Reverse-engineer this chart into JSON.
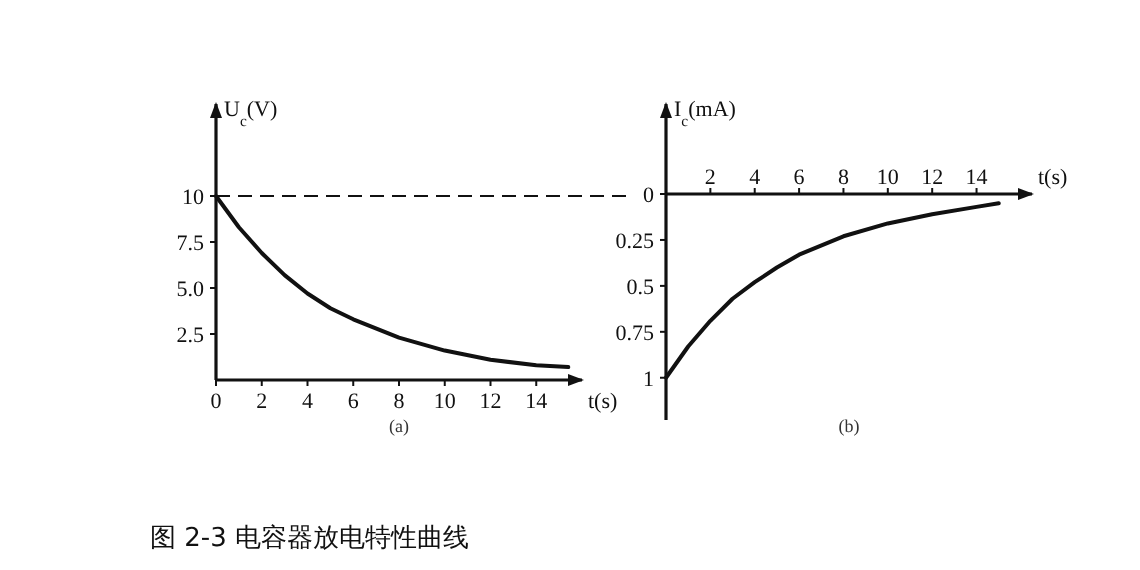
{
  "chart_data": [
    {
      "type": "line",
      "xlabel": "t(s)",
      "ylabel": "U$_{c}$(V)",
      "color": "#111111",
      "x": [
        0,
        1,
        2,
        3,
        4,
        5,
        6,
        8,
        10,
        12,
        14,
        15.4
      ],
      "values": [
        10,
        8.3,
        6.9,
        5.7,
        4.7,
        3.9,
        3.3,
        2.3,
        1.6,
        1.1,
        0.8,
        0.7
      ],
      "xlim": [
        0,
        16
      ],
      "ylim": [
        0,
        15
      ],
      "xticks": [
        0,
        2,
        4,
        6,
        8,
        10,
        12,
        14
      ],
      "yticks": [
        {
          "value": 2.5,
          "label": "2.5"
        },
        {
          "value": 5,
          "label": "5.0"
        },
        7.5,
        10
      ],
      "ref_lines": [
        {
          "axis": "y",
          "value": 10,
          "line_style": "dashed"
        }
      ],
      "annotations": [
        "(a)",
        "图 2-3 电容器放电特性曲线"
      ]
    },
    {
      "type": "line",
      "xlabel": "t(s)",
      "ylabel": "I$_{c}$(mA)",
      "color": "#111111",
      "x": [
        0,
        1,
        2,
        3,
        4,
        5,
        6,
        8,
        10,
        12,
        14,
        15
      ],
      "values": [
        1,
        0.83,
        0.69,
        0.57,
        0.48,
        0.4,
        0.33,
        0.23,
        0.16,
        0.11,
        0.07,
        0.05
      ],
      "xlim": [
        0,
        16.5
      ],
      "ylim": [
        1.23,
        -0.49
      ],
      "xticks": [
        2,
        4,
        6,
        8,
        10,
        12,
        14
      ],
      "yticks": [
        0,
        0.25,
        0.5,
        0.75,
        1
      ],
      "annotations": [
        "(b)"
      ]
    }
  ]
}
